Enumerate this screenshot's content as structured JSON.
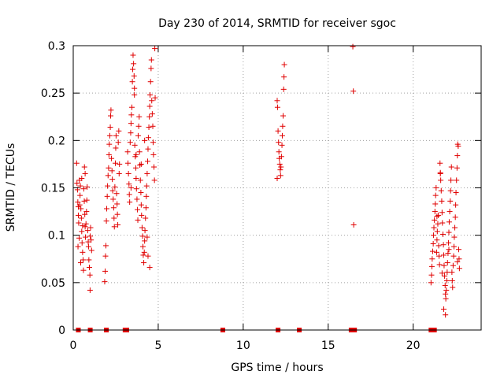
{
  "chart_data": {
    "type": "scatter",
    "title": "Day 230 of 2014, SRMTID for receiver sgoc",
    "xlabel": "GPS time / hours",
    "ylabel": "SRMTID / TECUs",
    "xlim": [
      0,
      24
    ],
    "ylim": [
      0,
      0.3
    ],
    "grid": true,
    "marker": "plus",
    "color": "#e00000",
    "xticks": [
      0,
      5,
      10,
      15,
      20
    ],
    "xtick_labels": [
      "0",
      "5",
      "10",
      "15",
      "20"
    ],
    "yticks": [
      0,
      0.05,
      0.1,
      0.15,
      0.2,
      0.25,
      0.3
    ],
    "ytick_labels": [
      "0",
      "0.05",
      "0.1",
      "0.15",
      "0.2",
      "0.25",
      "0.3"
    ],
    "series": [
      {
        "name": "SRMTID",
        "points": [
          [
            0.2,
            0.176
          ],
          [
            0.22,
            0.155
          ],
          [
            0.25,
            0.148
          ],
          [
            0.27,
            0.135
          ],
          [
            0.3,
            0.121
          ],
          [
            0.32,
            0.113
          ],
          [
            0.35,
            0.097
          ],
          [
            0.28,
            0.088
          ],
          [
            0.38,
            0.132
          ],
          [
            0.4,
            0.142
          ],
          [
            0.42,
            0.152
          ],
          [
            0.45,
            0.128
          ],
          [
            0.48,
            0.118
          ],
          [
            0.5,
            0.104
          ],
          [
            0.52,
            0.092
          ],
          [
            0.55,
            0.082
          ],
          [
            0.58,
            0.074
          ],
          [
            0.6,
            0.063
          ],
          [
            0.44,
            0.071
          ],
          [
            0.36,
            0.158
          ],
          [
            0.62,
            0.149
          ],
          [
            0.65,
            0.136
          ],
          [
            0.68,
            0.122
          ],
          [
            0.7,
            0.109
          ],
          [
            0.72,
            0.098
          ],
          [
            0.75,
            0.112
          ],
          [
            0.78,
            0.125
          ],
          [
            0.8,
            0.137
          ],
          [
            0.82,
            0.151
          ],
          [
            0.85,
            0.105
          ],
          [
            0.88,
            0.093
          ],
          [
            0.9,
            0.088
          ],
          [
            0.92,
            0.074
          ],
          [
            0.95,
            0.066
          ],
          [
            0.98,
            0.058
          ],
          [
            0.99,
            0.042
          ],
          [
            1.0,
            0.099
          ],
          [
            1.02,
            0.108
          ],
          [
            1.05,
            0.095
          ],
          [
            1.08,
            0.084
          ],
          [
            0.7,
            0.165
          ],
          [
            0.66,
            0.172
          ],
          [
            0.5,
            0.16
          ],
          [
            0.3,
            0.13
          ],
          [
            0.55,
            0.11
          ],
          [
            1.85,
            0.051
          ],
          [
            1.88,
            0.062
          ],
          [
            1.9,
            0.078
          ],
          [
            1.92,
            0.089
          ],
          [
            1.95,
            0.115
          ],
          [
            1.97,
            0.128
          ],
          [
            2.0,
            0.141
          ],
          [
            2.02,
            0.152
          ],
          [
            2.05,
            0.163
          ],
          [
            2.08,
            0.171
          ],
          [
            2.1,
            0.185
          ],
          [
            2.12,
            0.196
          ],
          [
            2.15,
            0.205
          ],
          [
            2.18,
            0.214
          ],
          [
            2.2,
            0.226
          ],
          [
            2.22,
            0.232
          ],
          [
            2.25,
            0.181
          ],
          [
            2.28,
            0.168
          ],
          [
            2.3,
            0.159
          ],
          [
            2.32,
            0.147
          ],
          [
            2.35,
            0.138
          ],
          [
            2.38,
            0.129
          ],
          [
            2.4,
            0.118
          ],
          [
            2.42,
            0.109
          ],
          [
            2.45,
            0.151
          ],
          [
            2.48,
            0.176
          ],
          [
            2.5,
            0.192
          ],
          [
            2.52,
            0.205
          ],
          [
            2.55,
            0.144
          ],
          [
            2.58,
            0.133
          ],
          [
            2.6,
            0.122
          ],
          [
            2.62,
            0.111
          ],
          [
            2.65,
            0.198
          ],
          [
            2.68,
            0.21
          ],
          [
            2.7,
            0.165
          ],
          [
            2.72,
            0.175
          ],
          [
            3.2,
            0.188
          ],
          [
            3.22,
            0.176
          ],
          [
            3.25,
            0.165
          ],
          [
            3.28,
            0.154
          ],
          [
            3.3,
            0.143
          ],
          [
            3.32,
            0.135
          ],
          [
            3.35,
            0.198
          ],
          [
            3.38,
            0.208
          ],
          [
            3.4,
            0.218
          ],
          [
            3.42,
            0.227
          ],
          [
            3.45,
            0.235
          ],
          [
            3.48,
            0.262
          ],
          [
            3.5,
            0.275
          ],
          [
            3.52,
            0.29
          ],
          [
            3.55,
            0.281
          ],
          [
            3.58,
            0.268
          ],
          [
            3.6,
            0.255
          ],
          [
            3.62,
            0.195
          ],
          [
            3.65,
            0.183
          ],
          [
            3.68,
            0.171
          ],
          [
            3.7,
            0.16
          ],
          [
            3.72,
            0.149
          ],
          [
            3.75,
            0.138
          ],
          [
            3.78,
            0.127
          ],
          [
            3.8,
            0.116
          ],
          [
            3.82,
            0.205
          ],
          [
            3.85,
            0.215
          ],
          [
            3.88,
            0.225
          ],
          [
            3.9,
            0.188
          ],
          [
            3.92,
            0.174
          ],
          [
            3.95,
            0.158
          ],
          [
            3.98,
            0.145
          ],
          [
            4.0,
            0.132
          ],
          [
            4.02,
            0.121
          ],
          [
            4.05,
            0.108
          ],
          [
            4.08,
            0.099
          ],
          [
            4.1,
            0.088
          ],
          [
            4.12,
            0.079
          ],
          [
            4.15,
            0.071
          ],
          [
            4.18,
            0.082
          ],
          [
            4.2,
            0.094
          ],
          [
            4.22,
            0.105
          ],
          [
            4.25,
            0.118
          ],
          [
            4.28,
            0.129
          ],
          [
            4.3,
            0.141
          ],
          [
            4.32,
            0.152
          ],
          [
            4.35,
            0.165
          ],
          [
            4.38,
            0.178
          ],
          [
            4.4,
            0.191
          ],
          [
            4.42,
            0.203
          ],
          [
            4.45,
            0.214
          ],
          [
            4.48,
            0.225
          ],
          [
            4.5,
            0.236
          ],
          [
            4.52,
            0.248
          ],
          [
            4.55,
            0.262
          ],
          [
            4.58,
            0.276
          ],
          [
            4.6,
            0.285
          ],
          [
            4.62,
            0.242
          ],
          [
            4.65,
            0.228
          ],
          [
            4.68,
            0.215
          ],
          [
            4.7,
            0.198
          ],
          [
            4.72,
            0.185
          ],
          [
            4.75,
            0.172
          ],
          [
            4.78,
            0.158
          ],
          [
            4.8,
            0.297
          ],
          [
            4.82,
            0.245
          ],
          [
            4.5,
            0.066
          ],
          [
            4.4,
            0.078
          ],
          [
            4.35,
            0.098
          ],
          [
            3.6,
            0.248
          ],
          [
            3.4,
            0.15
          ],
          [
            3.7,
            0.185
          ],
          [
            4.0,
            0.175
          ],
          [
            4.2,
            0.2
          ],
          [
            12.0,
            0.242
          ],
          [
            12.02,
            0.235
          ],
          [
            12.05,
            0.21
          ],
          [
            12.08,
            0.198
          ],
          [
            12.1,
            0.188
          ],
          [
            12.12,
            0.181
          ],
          [
            12.15,
            0.175
          ],
          [
            12.18,
            0.169
          ],
          [
            12.2,
            0.163
          ],
          [
            12.0,
            0.16
          ],
          [
            12.22,
            0.172
          ],
          [
            12.25,
            0.183
          ],
          [
            12.28,
            0.195
          ],
          [
            12.3,
            0.205
          ],
          [
            12.32,
            0.215
          ],
          [
            12.35,
            0.226
          ],
          [
            12.38,
            0.254
          ],
          [
            12.4,
            0.267
          ],
          [
            12.42,
            0.28
          ],
          [
            16.45,
            0.299
          ],
          [
            16.48,
            0.252
          ],
          [
            16.5,
            0.111
          ],
          [
            21.05,
            0.05
          ],
          [
            21.08,
            0.058
          ],
          [
            21.1,
            0.067
          ],
          [
            21.12,
            0.075
          ],
          [
            21.15,
            0.083
          ],
          [
            21.18,
            0.091
          ],
          [
            21.2,
            0.1
          ],
          [
            21.22,
            0.108
          ],
          [
            21.25,
            0.116
          ],
          [
            21.28,
            0.125
          ],
          [
            21.3,
            0.133
          ],
          [
            21.32,
            0.142
          ],
          [
            21.35,
            0.15
          ],
          [
            21.38,
            0.082
          ],
          [
            21.4,
            0.095
          ],
          [
            21.42,
            0.104
          ],
          [
            21.45,
            0.112
          ],
          [
            21.48,
            0.121
          ],
          [
            21.5,
            0.089
          ],
          [
            21.52,
            0.078
          ],
          [
            21.55,
            0.069
          ],
          [
            21.58,
            0.176
          ],
          [
            21.6,
            0.166
          ],
          [
            21.62,
            0.158
          ],
          [
            21.65,
            0.147
          ],
          [
            21.68,
            0.136
          ],
          [
            21.7,
            0.124
          ],
          [
            21.72,
            0.113
          ],
          [
            21.75,
            0.101
          ],
          [
            21.78,
            0.09
          ],
          [
            21.8,
            0.079
          ],
          [
            21.82,
            0.068
          ],
          [
            21.85,
            0.057
          ],
          [
            21.88,
            0.047
          ],
          [
            21.9,
            0.038
          ],
          [
            21.92,
            0.033
          ],
          [
            21.95,
            0.042
          ],
          [
            21.98,
            0.052
          ],
          [
            22.0,
            0.061
          ],
          [
            22.02,
            0.071
          ],
          [
            22.05,
            0.081
          ],
          [
            22.08,
            0.092
          ],
          [
            22.1,
            0.103
          ],
          [
            22.12,
            0.114
          ],
          [
            22.15,
            0.125
          ],
          [
            22.18,
            0.136
          ],
          [
            22.2,
            0.147
          ],
          [
            22.22,
            0.158
          ],
          [
            22.25,
            0.172
          ],
          [
            22.28,
            0.061
          ],
          [
            22.3,
            0.052
          ],
          [
            22.32,
            0.045
          ],
          [
            22.35,
            0.068
          ],
          [
            22.38,
            0.078
          ],
          [
            22.4,
            0.088
          ],
          [
            22.42,
            0.098
          ],
          [
            22.45,
            0.108
          ],
          [
            22.48,
            0.119
          ],
          [
            22.5,
            0.132
          ],
          [
            22.52,
            0.145
          ],
          [
            22.55,
            0.158
          ],
          [
            22.58,
            0.171
          ],
          [
            22.6,
            0.184
          ],
          [
            22.62,
            0.196
          ],
          [
            22.65,
            0.194
          ],
          [
            22.68,
            0.085
          ],
          [
            22.7,
            0.075
          ],
          [
            22.72,
            0.065
          ],
          [
            22.6,
            0.072
          ],
          [
            21.8,
            0.022
          ],
          [
            21.9,
            0.016
          ],
          [
            21.6,
            0.165
          ],
          [
            21.4,
            0.12
          ],
          [
            22.1,
            0.085
          ],
          [
            21.7,
            0.06
          ]
        ]
      }
    ],
    "zero_points": [
      0.3,
      1.0,
      1.95,
      3.05,
      3.15,
      8.8,
      12.05,
      13.3,
      16.35,
      16.45,
      16.55,
      21.05,
      21.15,
      21.25
    ]
  }
}
